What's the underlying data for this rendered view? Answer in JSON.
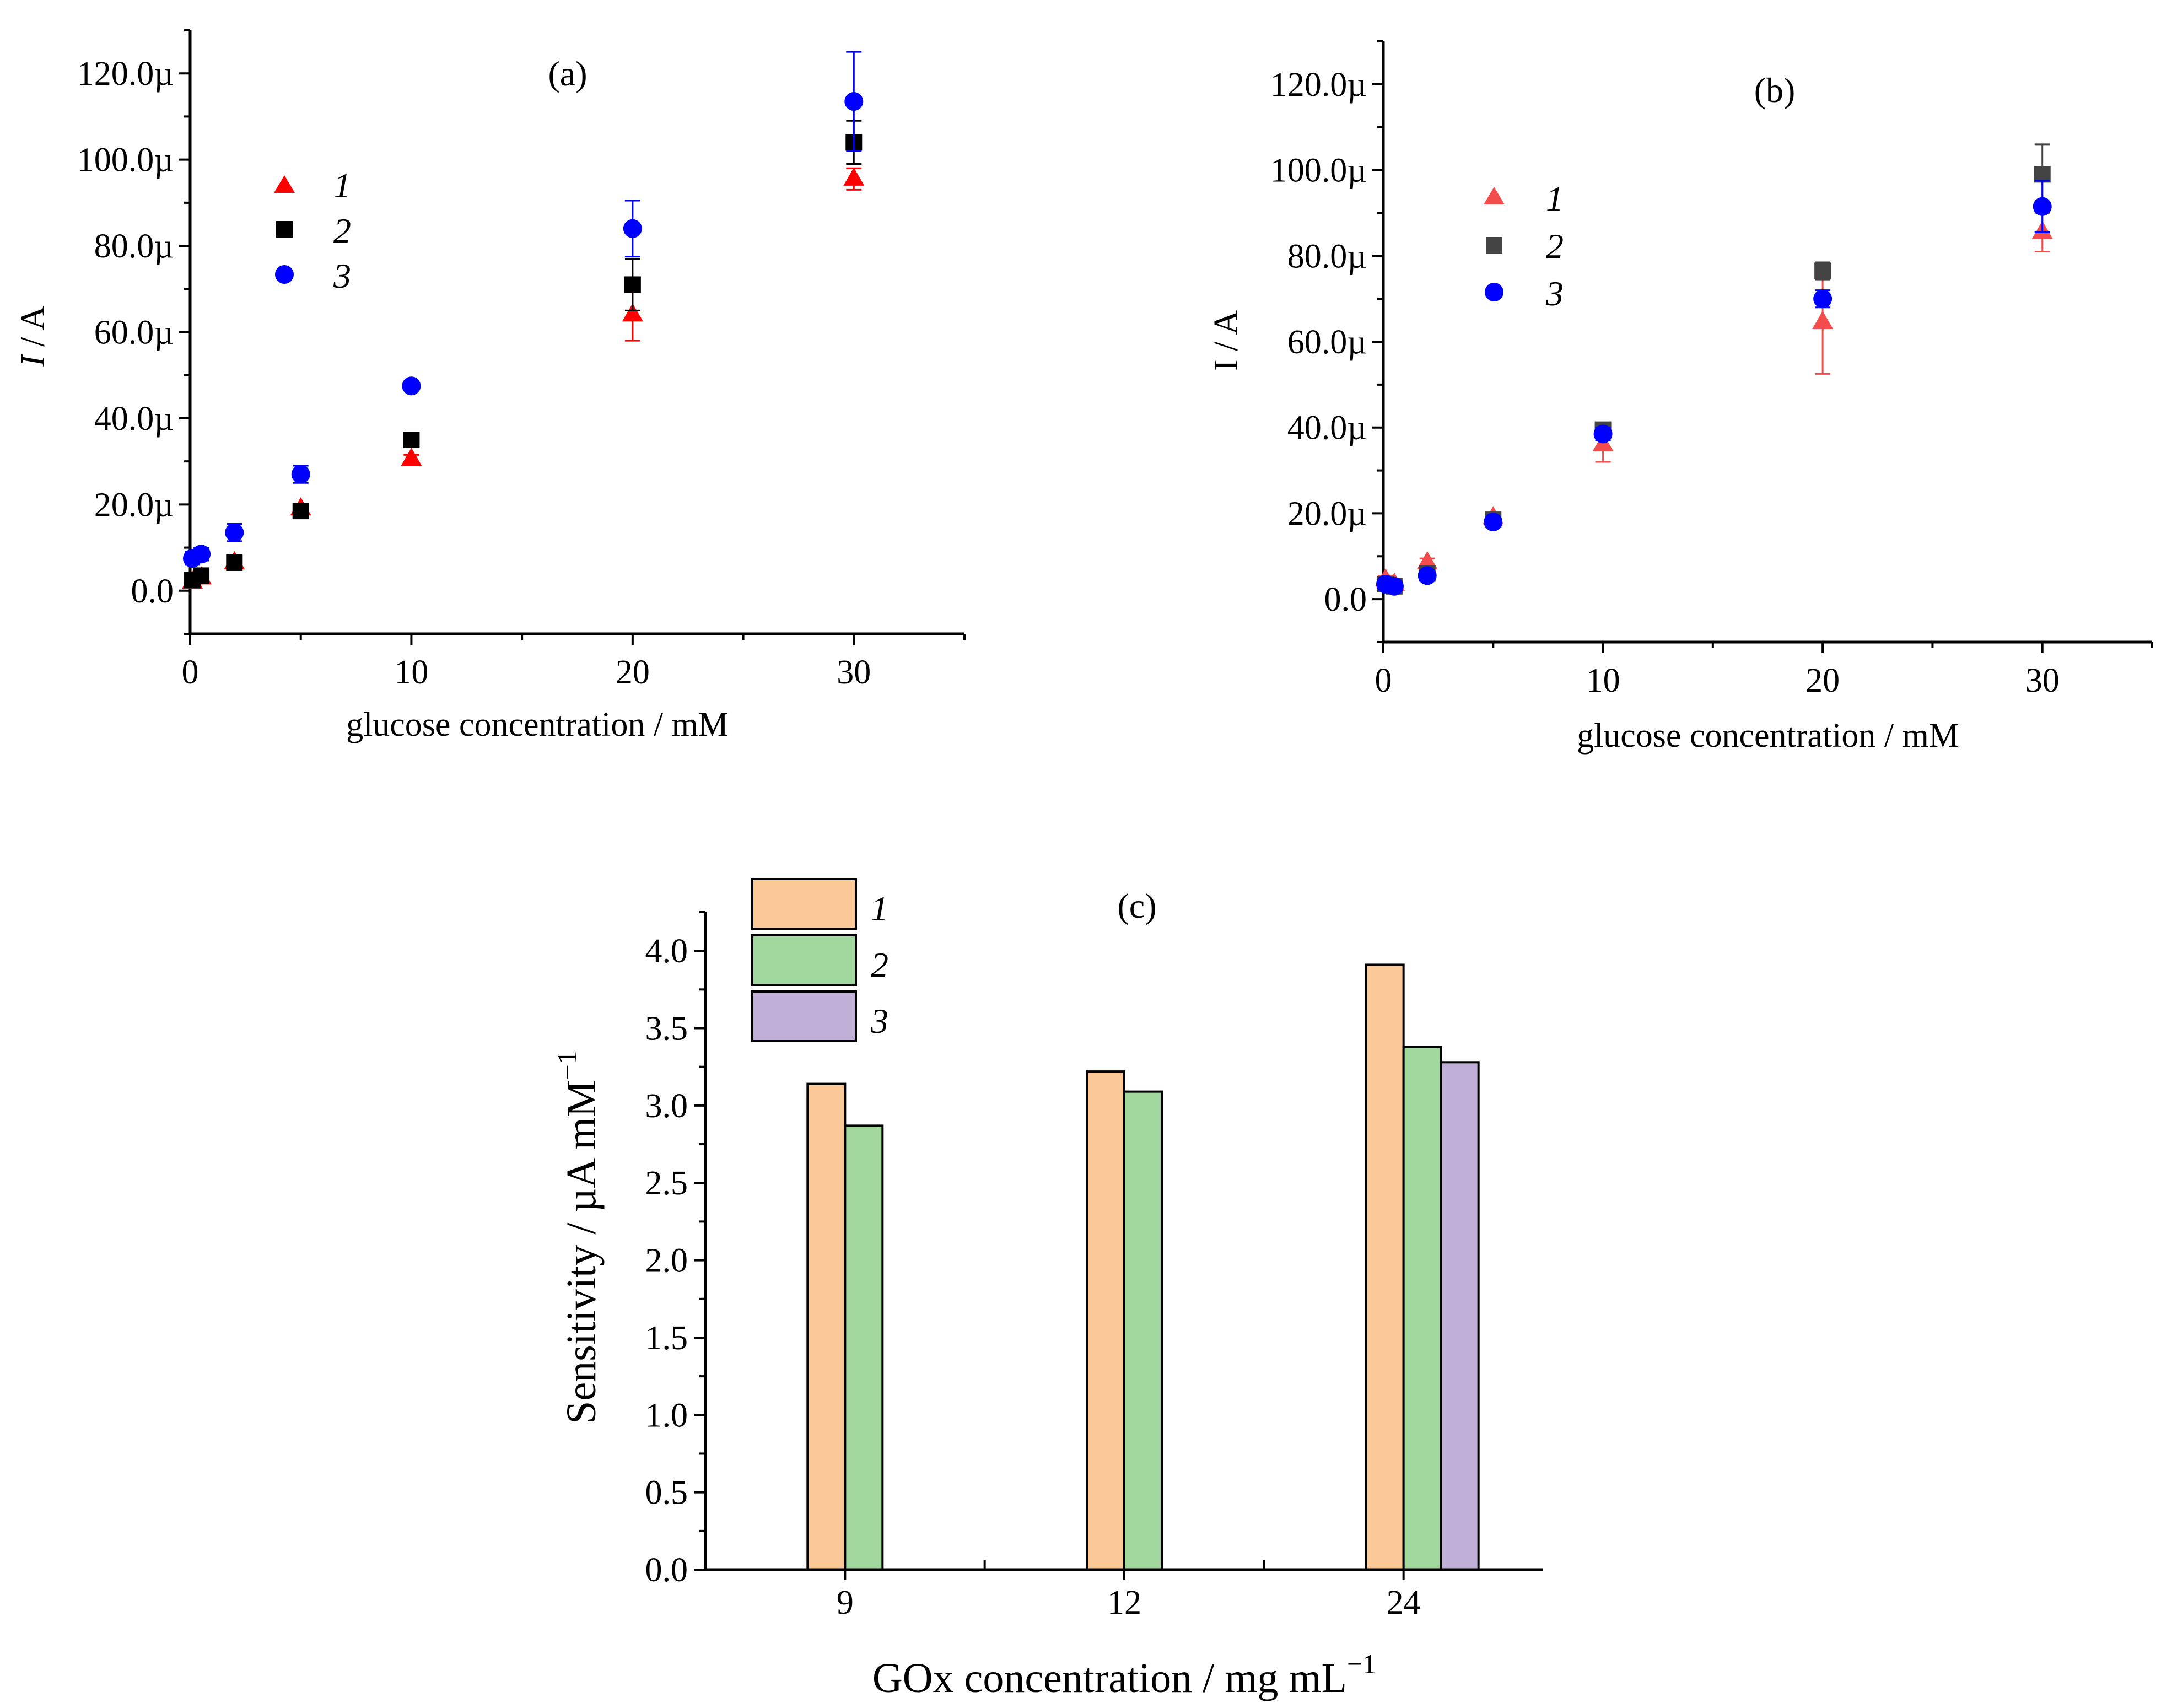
{
  "chart_data": [
    {
      "panel": "(a)",
      "type": "scatter",
      "xlabel": "glucose concentration / mM",
      "ylabel_italic": "I",
      "ylabel_rest": " / A",
      "xlim": [
        0,
        35
      ],
      "ylim": [
        -1e-05,
        0.00013
      ],
      "xticks": [
        0,
        10,
        20,
        30
      ],
      "xtick_labels": [
        "0",
        "10",
        "20",
        "30"
      ],
      "yticks": [
        0,
        2e-05,
        4e-05,
        6e-05,
        8e-05,
        0.0001,
        0.00012
      ],
      "ytick_labels": [
        "0.0",
        "20.0µ",
        "40.0µ",
        "60.0µ",
        "80.0µ",
        "100.0µ",
        "120.0µ"
      ],
      "legend": "upper-left",
      "series": [
        {
          "name": "1",
          "marker": "triangle",
          "color": "#ff0000",
          "x": [
            0.1,
            0.5,
            2,
            5,
            10,
            20,
            30
          ],
          "y": [
            2e-06,
            3e-06,
            6.5e-06,
            1.9e-05,
            3.05e-05,
            6.4e-05,
            9.55e-05
          ],
          "err": [
            1e-06,
            1e-06,
            1e-06,
            1e-06,
            1e-06,
            6e-06,
            2.5e-06
          ]
        },
        {
          "name": "2",
          "marker": "square",
          "color": "#000000",
          "x": [
            0.1,
            0.5,
            2,
            5,
            10,
            20,
            30
          ],
          "y": [
            2.5e-06,
            3.5e-06,
            6.5e-06,
            1.85e-05,
            3.5e-05,
            7.1e-05,
            0.000104
          ],
          "err": [
            1e-06,
            1e-06,
            1e-06,
            1e-06,
            1e-06,
            6e-06,
            5e-06
          ]
        },
        {
          "name": "3",
          "marker": "circle",
          "color": "#0000ff",
          "x": [
            0.1,
            0.5,
            2,
            5,
            10,
            20,
            30
          ],
          "y": [
            7.5e-06,
            8.5e-06,
            1.35e-05,
            2.7e-05,
            4.75e-05,
            8.4e-05,
            0.0001135
          ],
          "err": [
            1.5e-06,
            1.5e-06,
            2e-06,
            2e-06,
            1e-06,
            6.5e-06,
            1.15e-05
          ]
        }
      ]
    },
    {
      "panel": "(b)",
      "type": "scatter",
      "xlabel": "glucose concentration / mM",
      "ylabel_italic": "",
      "ylabel_rest": "I / A",
      "xlim": [
        0,
        35
      ],
      "ylim": [
        -1e-05,
        0.00013
      ],
      "xticks": [
        0,
        10,
        20,
        30
      ],
      "xtick_labels": [
        "0",
        "10",
        "20",
        "30"
      ],
      "yticks": [
        0,
        2e-05,
        4e-05,
        6e-05,
        8e-05,
        0.0001,
        0.00012
      ],
      "ytick_labels": [
        "0.0",
        "20.0µ",
        "40.0µ",
        "60.0µ",
        "80.0µ",
        "100.0µ",
        "120.0µ"
      ],
      "legend": "upper-left",
      "series": [
        {
          "name": "1",
          "marker": "triangle",
          "color": "#f24c4c",
          "x": [
            0.1,
            0.5,
            2,
            5,
            10,
            20,
            30
          ],
          "y": [
            4.5e-06,
            3.5e-06,
            8.5e-06,
            1.9e-05,
            3.6e-05,
            6.45e-05,
            8.55e-05
          ],
          "err": [
            1e-06,
            1e-06,
            1e-06,
            1e-06,
            4e-06,
            1.2e-05,
            4.5e-06
          ]
        },
        {
          "name": "2",
          "marker": "square",
          "color": "#444444",
          "x": [
            0.1,
            0.5,
            2,
            5,
            10,
            20,
            30
          ],
          "y": [
            3.5e-06,
            3e-06,
            6e-06,
            1.85e-05,
            3.95e-05,
            7.65e-05,
            9.9e-05
          ],
          "err": [
            1e-06,
            1e-06,
            1e-06,
            1e-06,
            1.5e-06,
            2e-06,
            7e-06
          ]
        },
        {
          "name": "3",
          "marker": "circle",
          "color": "#0000ff",
          "x": [
            0.1,
            0.5,
            2,
            5,
            10,
            20,
            30
          ],
          "y": [
            3.5e-06,
            3e-06,
            5.5e-06,
            1.8e-05,
            3.85e-05,
            7e-05,
            9.15e-05
          ],
          "err": [
            1e-06,
            1e-06,
            1e-06,
            1e-06,
            1.5e-06,
            2e-06,
            6e-06
          ]
        }
      ]
    },
    {
      "panel": "(c)",
      "type": "bar",
      "xlabel": "GOx concentration / mg mL",
      "xlabel_sup": "−1",
      "ylabel": "Sensitivity / µA mM",
      "ylabel_sup": "−1",
      "categories": [
        "9",
        "12",
        "24"
      ],
      "ylim": [
        0,
        4.25
      ],
      "yticks": [
        0,
        0.5,
        1.0,
        1.5,
        2.0,
        2.5,
        3.0,
        3.5,
        4.0
      ],
      "ytick_labels": [
        "0.0",
        "0.5",
        "1.0",
        "1.5",
        "2.0",
        "2.5",
        "3.0",
        "3.5",
        "4.0"
      ],
      "legend": "top-left",
      "series": [
        {
          "name": "1",
          "color": "#fbc897",
          "values": [
            3.14,
            3.22,
            3.91
          ]
        },
        {
          "name": "2",
          "color": "#a0d89e",
          "values": [
            2.87,
            3.09,
            3.38
          ]
        },
        {
          "name": "3",
          "color": "#c0b0d8",
          "values": [
            null,
            null,
            3.28
          ]
        }
      ]
    }
  ]
}
